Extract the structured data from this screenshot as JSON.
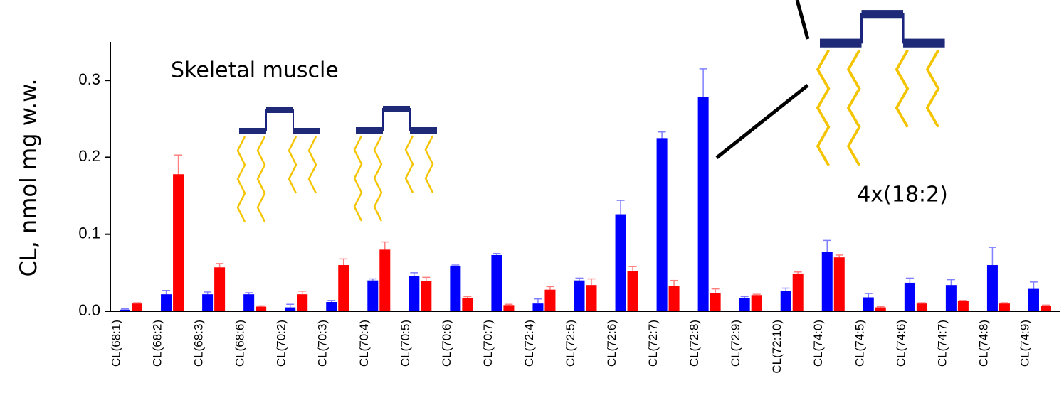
{
  "chart_data": {
    "type": "bar",
    "y_label": "CL, nmol mg w.w.",
    "annotations": [
      "Skeletal muscle",
      "4x(18:2)"
    ],
    "categories": [
      "CL(68:1)",
      "CL(68:2)",
      "CL(68:3)",
      "CL(68:6)",
      "CL(70:2)",
      "CL(70:3)",
      "CL(70:4)",
      "CL(70:5)",
      "CL(70:6)",
      "CL(70:7)",
      "CL(72:4)",
      "CL(72:5)",
      "CL(72:6)",
      "CL(72:7)",
      "CL(72:8)",
      "CL(72:9)",
      "CL(72:10)",
      "CL(74:0)",
      "CL(74:5)",
      "CL(74:6)",
      "CL(74:7)",
      "CL(74:8)",
      "CL(74:9)"
    ],
    "series": [
      {
        "color": "#0000ff",
        "error_color": "#7f7fff",
        "values": [
          0.002,
          0.022,
          0.022,
          0.022,
          0.005,
          0.012,
          0.04,
          0.046,
          0.059,
          0.073,
          0.01,
          0.04,
          0.126,
          0.225,
          0.278,
          0.017,
          0.026,
          0.077,
          0.018,
          0.037,
          0.034,
          0.06,
          0.029
        ],
        "errors": [
          0.001,
          0.005,
          0.003,
          0.002,
          0.004,
          0.002,
          0.002,
          0.004,
          0.001,
          0.002,
          0.006,
          0.003,
          0.018,
          0.008,
          0.037,
          0.002,
          0.004,
          0.015,
          0.005,
          0.006,
          0.007,
          0.023,
          0.009
        ]
      },
      {
        "color": "#ff0000",
        "error_color": "#ff7f7f",
        "values": [
          0.01,
          0.178,
          0.057,
          0.006,
          0.022,
          0.06,
          0.08,
          0.039,
          0.017,
          0.008,
          0.028,
          0.034,
          0.052,
          0.033,
          0.024,
          0.021,
          0.049,
          0.07,
          0.005,
          0.01,
          0.013,
          0.01,
          0.007
        ],
        "errors": [
          0.001,
          0.025,
          0.005,
          0.001,
          0.004,
          0.008,
          0.01,
          0.005,
          0.002,
          0.001,
          0.004,
          0.008,
          0.006,
          0.007,
          0.005,
          0.001,
          0.002,
          0.003,
          0.001,
          0.001,
          0.001,
          0.001,
          0.001
        ]
      }
    ],
    "ylim": [
      0,
      0.35
    ],
    "yticks": [
      {
        "value": 0,
        "label": "0.0"
      },
      0.1,
      0.2,
      0.3
    ]
  }
}
